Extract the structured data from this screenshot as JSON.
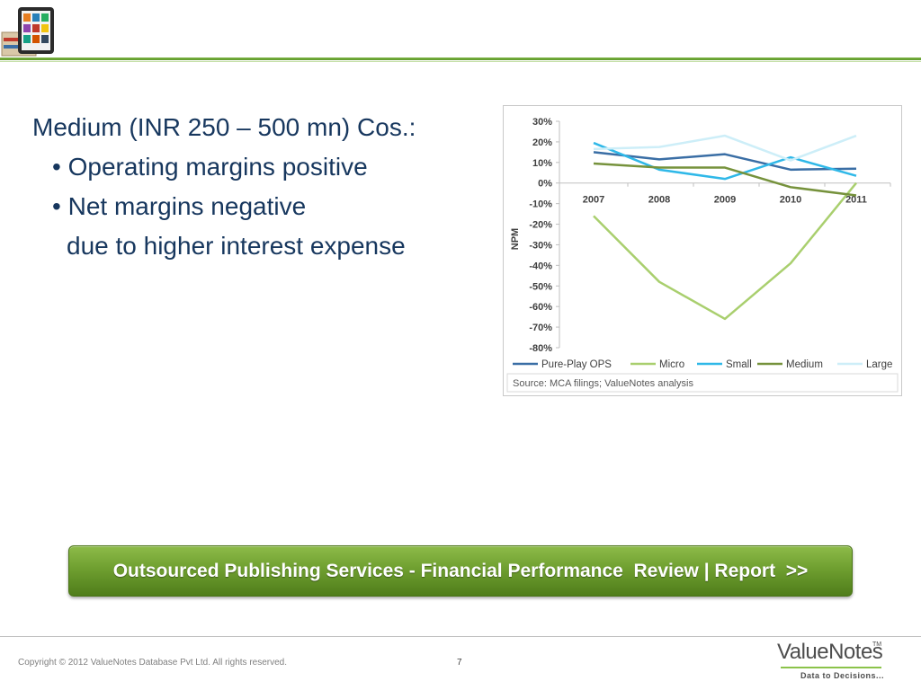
{
  "slide": {
    "heading": "Medium (INR 250 – 500 mn) Cos.:",
    "bullets": [
      "Operating margins positive",
      "Net margins negative"
    ],
    "continuation": "due to higher interest expense"
  },
  "chart_data": {
    "type": "line",
    "x": [
      "2007",
      "2008",
      "2009",
      "2010",
      "2011"
    ],
    "ylabel": "NPM",
    "ylim": [
      -0.8,
      0.3
    ],
    "yticks": [
      "30%",
      "20%",
      "10%",
      "0%",
      "-10%",
      "-20%",
      "-30%",
      "-40%",
      "-50%",
      "-60%",
      "-70%",
      "-80%"
    ],
    "series": [
      {
        "name": "Pure-Play OPS",
        "color": "#3a6ea5",
        "values": [
          0.15,
          0.115,
          0.14,
          0.065,
          0.07
        ]
      },
      {
        "name": "Micro",
        "color": "#a9cf6e",
        "values": [
          -0.16,
          -0.48,
          -0.66,
          -0.39,
          0.0
        ]
      },
      {
        "name": "Small",
        "color": "#2fb8e8",
        "values": [
          0.195,
          0.065,
          0.02,
          0.125,
          0.035
        ]
      },
      {
        "name": "Medium",
        "color": "#76923c",
        "values": [
          0.095,
          0.075,
          0.075,
          -0.02,
          -0.06
        ]
      },
      {
        "name": "Large",
        "color": "#cdeef8",
        "values": [
          0.165,
          0.175,
          0.23,
          0.11,
          0.23
        ]
      }
    ],
    "legend_position": "bottom",
    "source": "Source: MCA filings; ValueNotes analysis"
  },
  "banner": {
    "text": "Outsourced Publishing Services - Financial Performance  Review | Report  >>"
  },
  "footer": {
    "copyright": "Copyright © 2012 ValueNotes Database Pvt Ltd. All rights reserved.",
    "page_number": "7",
    "logo_name": "ValueNotes",
    "logo_tm": "TM",
    "logo_tagline": "Data to Decisions..."
  },
  "colors": {
    "accent_green": "#7cb342",
    "text_navy": "#17375e"
  }
}
